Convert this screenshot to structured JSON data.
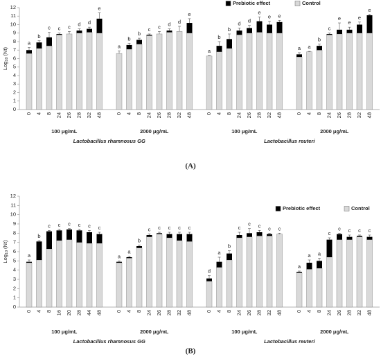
{
  "chart_data": [
    {
      "type": "bar",
      "stacked": true,
      "panel_label": "(A)",
      "y_label": {
        "text": "Log",
        "subscript": "10",
        "suffix": "(Nt)"
      },
      "ylim": [
        0,
        12
      ],
      "yticks": [
        0,
        1,
        2,
        3,
        4,
        5,
        6,
        7,
        8,
        9,
        10,
        11,
        12
      ],
      "legend": "upper right",
      "categories": [
        "0",
        "4",
        "8",
        "24",
        "26",
        "28",
        "32",
        "48",
        "0",
        "4",
        "8",
        "24",
        "26",
        "28",
        "32",
        "48",
        "0",
        "4",
        "8",
        "24",
        "26",
        "28",
        "32",
        "48",
        "0",
        "4",
        "8",
        "24",
        "26",
        "28",
        "32",
        "48"
      ],
      "series": [
        {
          "name": "Prebiotic effect",
          "color": "#000000",
          "values": [
            0.4,
            0.7,
            1.0,
            0.1,
            0.0,
            0.3,
            0.4,
            1.7,
            0.0,
            0.5,
            0.5,
            0.1,
            0.0,
            0.2,
            0.0,
            1.2,
            0.0,
            0.7,
            1.1,
            0.5,
            0.6,
            1.3,
            1.0,
            1.3,
            0.3,
            0.0,
            0.5,
            0.1,
            0.5,
            0.4,
            1.0,
            2.1
          ],
          "errors": [
            0.3,
            0.2,
            0.6,
            0.1,
            0.3,
            0.2,
            0.2,
            0.7,
            0.3,
            0.2,
            0.2,
            0.1,
            0.3,
            0.2,
            0.6,
            0.5,
            0.05,
            0.5,
            0.6,
            0.3,
            0.3,
            0.5,
            0.4,
            0.2,
            0.2,
            0.05,
            0.2,
            0.1,
            0.8,
            0.3,
            0.3,
            0.1
          ]
        },
        {
          "name": "Control",
          "color": "#d9d9d9",
          "values": [
            6.6,
            7.2,
            7.5,
            8.8,
            8.9,
            9.0,
            9.1,
            9.0,
            6.6,
            7.1,
            7.7,
            8.7,
            8.9,
            9.1,
            9.2,
            9.0,
            6.3,
            6.8,
            7.2,
            8.8,
            9.0,
            9.1,
            9.0,
            9.0,
            6.2,
            6.8,
            7.0,
            8.8,
            8.9,
            9.0,
            9.0,
            9.0
          ]
        }
      ],
      "annotations": [
        "a",
        "b",
        "c",
        "c",
        "c",
        "d",
        "d",
        "e",
        "a",
        "b",
        "b",
        "c",
        "c",
        "d",
        "d",
        "e",
        "a",
        "b",
        "b",
        "d",
        "d",
        "e",
        "e",
        "e",
        "a",
        "a",
        "b",
        "c",
        "e",
        "e",
        "e",
        "e"
      ],
      "groups": [
        "100 μg/mL",
        "2000 μg/mL",
        "100 μg/mL",
        "2000 μg/mL"
      ],
      "species": [
        "Lactobacillus rhamnosus GG",
        "Lactobacillus reuteri"
      ]
    },
    {
      "type": "bar",
      "stacked": true,
      "panel_label": "(B)",
      "y_label": {
        "text": "Log",
        "subscript": "10",
        "suffix": "(Nt)"
      },
      "ylim": [
        0,
        12
      ],
      "yticks": [
        0,
        1,
        2,
        3,
        4,
        5,
        6,
        7,
        8,
        9,
        10,
        11,
        12
      ],
      "legend": "upper right",
      "categories": [
        "0",
        "4",
        "8",
        "16",
        "20",
        "28",
        "44",
        "48",
        "0",
        "4",
        "8",
        "24",
        "26",
        "28",
        "32",
        "48",
        "0",
        "4",
        "8",
        "24",
        "26",
        "28",
        "32",
        "48",
        "0",
        "4",
        "8",
        "24",
        "26",
        "28",
        "32",
        "48"
      ],
      "series": [
        {
          "name": "Prebiotic effect",
          "color": "#000000",
          "values": [
            0.1,
            2.0,
            1.9,
            1.1,
            1.1,
            1.3,
            1.2,
            1.0,
            0.1,
            0.1,
            0.2,
            0.2,
            0.1,
            0.4,
            0.7,
            0.8,
            0.3,
            0.6,
            0.7,
            0.3,
            0.4,
            0.4,
            0.2,
            0.0,
            0.1,
            0.7,
            0.8,
            1.9,
            0.6,
            0.3,
            0.1,
            0.3
          ],
          "errors": [
            0.2,
            0.1,
            0.1,
            0.1,
            0.1,
            0.1,
            0.2,
            0.2,
            0.1,
            0.1,
            0.1,
            0.1,
            0.1,
            0.2,
            0.2,
            0.2,
            0.3,
            0.5,
            0.3,
            0.3,
            0.5,
            0.2,
            0.1,
            0.1,
            0.1,
            0.3,
            0.3,
            0.2,
            0.1,
            0.2,
            0.1,
            0.2
          ]
        },
        {
          "name": "Control",
          "color": "#d9d9d9",
          "values": [
            4.8,
            5.1,
            6.3,
            7.2,
            7.3,
            7.0,
            6.9,
            6.9,
            4.8,
            5.3,
            6.4,
            7.6,
            7.9,
            7.5,
            7.2,
            7.1,
            2.8,
            4.3,
            5.1,
            7.5,
            7.6,
            7.7,
            7.7,
            7.9,
            3.7,
            4.1,
            4.2,
            5.4,
            7.3,
            7.3,
            7.6,
            7.3
          ]
        }
      ],
      "annotations": [
        "a",
        "b",
        "c",
        "c",
        "c",
        "c",
        "c",
        "c",
        "a",
        "a",
        "b",
        "c",
        "c",
        "c",
        "c",
        "c",
        "d",
        "a",
        "b",
        "c",
        "c",
        "c",
        "c",
        "c",
        "a",
        "a",
        "a",
        "c",
        "c",
        "c",
        "c",
        "c"
      ],
      "groups": [
        "100 μg/mL",
        "2000 μg/mL",
        "100 μg/mL",
        "2000 μg/mL"
      ],
      "species": [
        "Lactobacillus rhamnosus GG",
        "Lactobacillus reuteri"
      ]
    }
  ]
}
